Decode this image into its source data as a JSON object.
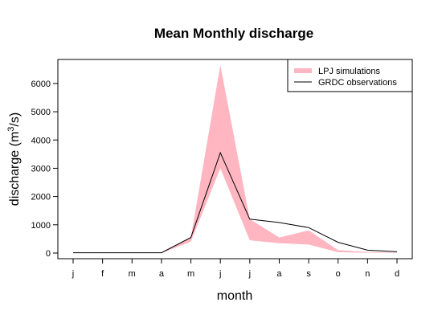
{
  "chart_data": {
    "type": "line",
    "title": "Mean Monthly discharge",
    "xlabel": "month",
    "ylabel_prefix": "discharge (m",
    "ylabel_sup": "3",
    "ylabel_suffix": "/s)",
    "categories": [
      "j",
      "f",
      "m",
      "a",
      "m",
      "j",
      "j",
      "a",
      "s",
      "o",
      "n",
      "d"
    ],
    "ylim": [
      -200,
      6850
    ],
    "yticks": [
      0,
      1000,
      2000,
      3000,
      4000,
      5000,
      6000
    ],
    "grid": false,
    "legend_position": "top-right",
    "colors": {
      "band": "#FFB6C1",
      "line": "#000000"
    },
    "series": [
      {
        "name": "LPJ simulations",
        "kind": "range",
        "low": [
          0,
          0,
          0,
          0,
          400,
          3000,
          450,
          350,
          300,
          30,
          10,
          10
        ],
        "high": [
          20,
          20,
          20,
          20,
          550,
          6650,
          1200,
          550,
          800,
          100,
          40,
          30
        ]
      },
      {
        "name": "GRDC observations",
        "kind": "line",
        "values": [
          10,
          10,
          10,
          10,
          550,
          3550,
          1200,
          1080,
          900,
          380,
          100,
          50
        ]
      }
    ]
  }
}
